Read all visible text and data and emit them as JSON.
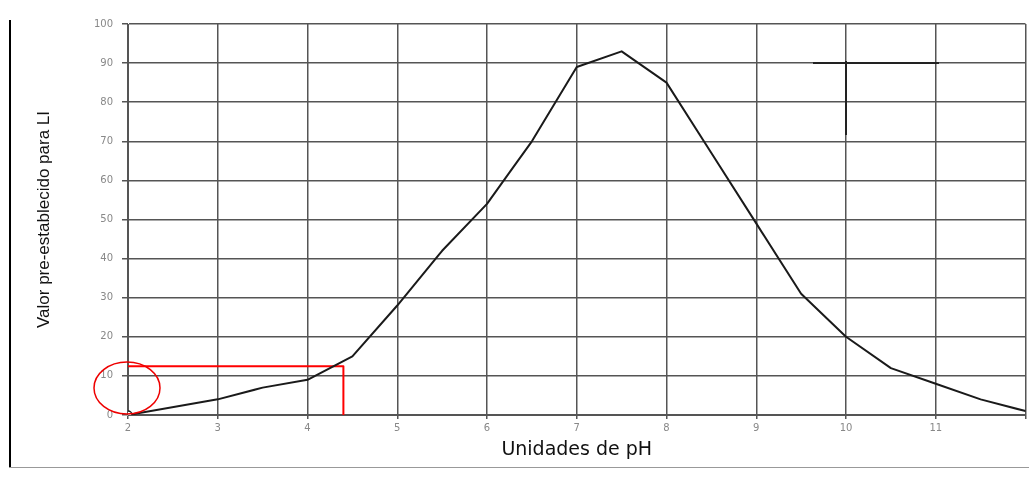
{
  "chart_data": {
    "type": "line",
    "xlabel": "Unidades de pH",
    "ylabel": "Valor pre-establecido para LI",
    "xlim": [
      2,
      12
    ],
    "xticks": [
      2,
      3,
      4,
      5,
      6,
      7,
      8,
      9,
      10,
      11,
      {
        "value": 12,
        "label": null
      }
    ],
    "ylim": [
      0,
      100
    ],
    "yticks": [
      0,
      10,
      20,
      30,
      40,
      50,
      60,
      70,
      80,
      90,
      100
    ],
    "grid": true,
    "legend": false,
    "marker": "none",
    "line_style": "solid",
    "series": [
      {
        "color": "#1a1a1a",
        "x": [
          2,
          3,
          3.5,
          4,
          4.5,
          5,
          5.5,
          6,
          6.5,
          7,
          7.5,
          8,
          8.5,
          9,
          9.5,
          10,
          10.5,
          11,
          11.5,
          12
        ],
        "values": [
          0,
          4,
          7,
          9,
          15,
          28,
          42,
          54,
          70,
          89,
          93,
          85,
          67,
          49,
          31,
          20,
          12,
          8,
          4,
          1
        ]
      },
      {
        "type": "line",
        "color": "#ff0000",
        "x": [
          2,
          4.4,
          4.4
        ],
        "values": [
          12.5,
          12.5,
          0
        ]
      },
      {
        "type": "scatter",
        "marker": "circle",
        "color": "#1a1a1a",
        "x": [
          2
        ],
        "values": [
          0
        ]
      }
    ]
  }
}
